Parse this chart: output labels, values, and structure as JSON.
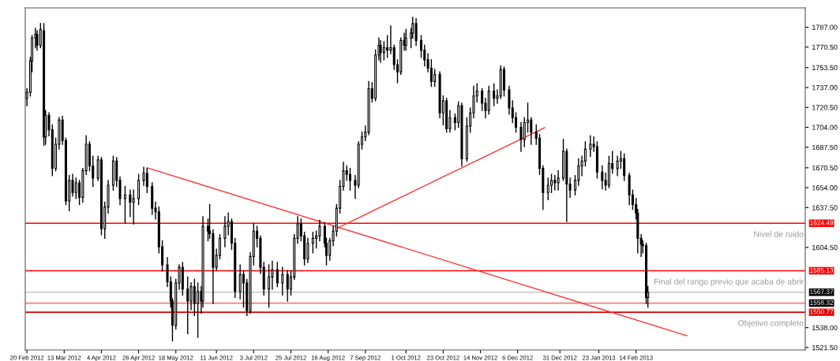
{
  "chart_data": {
    "type": "candlestick",
    "x": [
      "2012-02-20",
      "2012-02-22",
      "2012-02-23",
      "2012-02-25",
      "2012-02-26",
      "2012-02-28",
      "2012-03-01",
      "2012-03-02",
      "2012-03-04",
      "2012-03-06",
      "2012-03-08",
      "2012-03-10",
      "2012-03-12",
      "2012-03-14",
      "2012-03-16",
      "2012-03-18",
      "2012-03-20",
      "2012-03-22",
      "2012-03-24",
      "2012-03-26",
      "2012-03-28",
      "2012-03-30",
      "2012-04-02",
      "2012-04-04",
      "2012-04-06",
      "2012-04-08",
      "2012-04-11",
      "2012-04-13",
      "2012-04-15",
      "2012-04-18",
      "2012-04-21",
      "2012-04-23",
      "2012-04-26",
      "2012-04-29",
      "2012-05-01",
      "2012-05-04",
      "2012-05-06",
      "2012-05-08",
      "2012-05-10",
      "2012-05-13",
      "2012-05-15",
      "2012-05-16",
      "2012-05-18",
      "2012-05-20",
      "2012-05-22",
      "2012-05-25",
      "2012-05-27",
      "2012-05-29",
      "2012-05-31",
      "2012-06-02",
      "2012-06-03",
      "2012-06-06",
      "2012-06-07",
      "2012-06-09",
      "2012-06-11",
      "2012-06-13",
      "2012-06-16",
      "2012-06-18",
      "2012-06-20",
      "2012-06-22",
      "2012-06-25",
      "2012-06-27",
      "2012-06-29",
      "2012-07-01",
      "2012-07-03",
      "2012-07-05",
      "2012-07-07",
      "2012-07-09",
      "2012-07-12",
      "2012-07-14",
      "2012-07-17",
      "2012-07-20",
      "2012-07-23",
      "2012-07-25",
      "2012-07-27",
      "2012-07-29",
      "2012-07-31",
      "2012-08-02",
      "2012-08-04",
      "2012-08-07",
      "2012-08-09",
      "2012-08-11",
      "2012-08-14",
      "2012-08-15",
      "2012-08-17",
      "2012-08-19",
      "2012-08-21",
      "2012-08-23",
      "2012-08-25",
      "2012-08-27",
      "2012-08-29",
      "2012-09-01",
      "2012-09-03",
      "2012-09-05",
      "2012-09-07",
      "2012-09-09",
      "2012-09-11",
      "2012-09-13",
      "2012-09-15",
      "2012-09-16",
      "2012-09-18",
      "2012-09-20",
      "2012-09-22",
      "2012-09-24",
      "2012-09-26",
      "2012-09-28",
      "2012-09-30",
      "2012-10-01",
      "2012-10-04",
      "2012-10-05",
      "2012-10-07",
      "2012-10-10",
      "2012-10-12",
      "2012-10-14",
      "2012-10-16",
      "2012-10-18",
      "2012-10-21",
      "2012-10-23",
      "2012-10-25",
      "2012-10-27",
      "2012-10-30",
      "2012-11-01",
      "2012-11-03",
      "2012-11-06",
      "2012-11-08",
      "2012-11-10",
      "2012-11-12",
      "2012-11-15",
      "2012-11-17",
      "2012-11-19",
      "2012-11-22",
      "2012-11-24",
      "2012-11-26",
      "2012-11-28",
      "2012-12-01",
      "2012-12-03",
      "2012-12-05",
      "2012-12-08",
      "2012-12-10",
      "2012-12-12",
      "2012-12-14",
      "2012-12-17",
      "2012-12-19",
      "2012-12-21",
      "2012-12-24",
      "2012-12-26",
      "2012-12-28",
      "2012-12-30",
      "2013-01-02",
      "2013-01-04",
      "2013-01-06",
      "2013-01-09",
      "2013-01-11",
      "2013-01-13",
      "2013-01-15",
      "2013-01-18",
      "2013-01-20",
      "2013-01-22",
      "2013-01-25",
      "2013-01-27",
      "2013-01-29",
      "2013-01-31",
      "2013-02-03",
      "2013-02-05",
      "2013-02-07",
      "2013-02-10",
      "2013-02-12",
      "2013-02-14",
      "2013-02-15",
      "2013-02-17",
      "2013-02-18",
      "2013-02-20",
      "2013-02-21"
    ],
    "ohlc": [
      [
        1728,
        1736,
        1722,
        1733
      ],
      [
        1733,
        1762,
        1730,
        1759
      ],
      [
        1759,
        1780,
        1750,
        1778
      ],
      [
        1778,
        1786,
        1770,
        1781
      ],
      [
        1781,
        1784,
        1768,
        1772
      ],
      [
        1772,
        1790,
        1770,
        1785
      ],
      [
        1784,
        1790,
        1689,
        1696
      ],
      [
        1696,
        1718,
        1690,
        1714
      ],
      [
        1714,
        1716,
        1697,
        1702
      ],
      [
        1702,
        1706,
        1664,
        1670
      ],
      [
        1670,
        1695,
        1668,
        1690
      ],
      [
        1690,
        1712,
        1686,
        1710
      ],
      [
        1710,
        1713,
        1690,
        1693
      ],
      [
        1693,
        1695,
        1640,
        1643
      ],
      [
        1643,
        1664,
        1635,
        1660
      ],
      [
        1660,
        1665,
        1647,
        1650
      ],
      [
        1650,
        1662,
        1645,
        1658
      ],
      [
        1658,
        1660,
        1640,
        1646
      ],
      [
        1646,
        1670,
        1642,
        1668
      ],
      [
        1668,
        1697,
        1665,
        1690
      ],
      [
        1690,
        1692,
        1668,
        1672
      ],
      [
        1672,
        1680,
        1655,
        1662
      ],
      [
        1662,
        1680,
        1660,
        1677
      ],
      [
        1677,
        1679,
        1615,
        1620
      ],
      [
        1620,
        1642,
        1612,
        1638
      ],
      [
        1638,
        1660,
        1633,
        1656
      ],
      [
        1656,
        1680,
        1652,
        1676
      ],
      [
        1676,
        1679,
        1655,
        1660
      ],
      [
        1660,
        1663,
        1640,
        1645
      ],
      [
        1645,
        1655,
        1625,
        1648
      ],
      [
        1648,
        1652,
        1630,
        1642
      ],
      [
        1642,
        1652,
        1624,
        1645
      ],
      [
        1645,
        1665,
        1640,
        1660
      ],
      [
        1660,
        1671,
        1656,
        1666
      ],
      [
        1666,
        1670,
        1650,
        1655
      ],
      [
        1655,
        1658,
        1632,
        1637
      ],
      [
        1637,
        1642,
        1628,
        1634
      ],
      [
        1634,
        1638,
        1600,
        1605
      ],
      [
        1605,
        1610,
        1585,
        1590
      ],
      [
        1590,
        1596,
        1572,
        1576
      ],
      [
        1576,
        1580,
        1555,
        1560
      ],
      [
        1560,
        1562,
        1527,
        1540
      ],
      [
        1540,
        1578,
        1537,
        1575
      ],
      [
        1575,
        1590,
        1570,
        1588
      ],
      [
        1588,
        1592,
        1565,
        1570
      ],
      [
        1570,
        1580,
        1533,
        1560
      ],
      [
        1560,
        1575,
        1553,
        1572
      ],
      [
        1572,
        1578,
        1548,
        1558
      ],
      [
        1558,
        1575,
        1530,
        1568
      ],
      [
        1568,
        1572,
        1550,
        1560
      ],
      [
        1560,
        1630,
        1555,
        1622
      ],
      [
        1622,
        1628,
        1610,
        1618
      ],
      [
        1618,
        1640,
        1612,
        1616
      ],
      [
        1616,
        1619,
        1558,
        1588
      ],
      [
        1588,
        1603,
        1586,
        1598
      ],
      [
        1598,
        1615,
        1595,
        1612
      ],
      [
        1612,
        1630,
        1605,
        1622
      ],
      [
        1622,
        1633,
        1615,
        1626
      ],
      [
        1626,
        1628,
        1603,
        1608
      ],
      [
        1608,
        1612,
        1563,
        1568
      ],
      [
        1568,
        1590,
        1562,
        1582
      ],
      [
        1582,
        1585,
        1555,
        1575
      ],
      [
        1575,
        1578,
        1548,
        1552
      ],
      [
        1552,
        1600,
        1550,
        1597
      ],
      [
        1597,
        1624,
        1590,
        1618
      ],
      [
        1618,
        1622,
        1605,
        1612
      ],
      [
        1612,
        1614,
        1583,
        1588
      ],
      [
        1588,
        1592,
        1565,
        1570
      ],
      [
        1570,
        1590,
        1555,
        1580
      ],
      [
        1580,
        1593,
        1570,
        1586
      ],
      [
        1586,
        1592,
        1572,
        1575
      ],
      [
        1575,
        1588,
        1565,
        1582
      ],
      [
        1582,
        1585,
        1560,
        1570
      ],
      [
        1570,
        1585,
        1565,
        1580
      ],
      [
        1580,
        1615,
        1578,
        1612
      ],
      [
        1612,
        1630,
        1608,
        1624
      ],
      [
        1624,
        1628,
        1610,
        1614
      ],
      [
        1614,
        1617,
        1590,
        1595
      ],
      [
        1595,
        1612,
        1592,
        1608
      ],
      [
        1608,
        1617,
        1600,
        1612
      ],
      [
        1612,
        1618,
        1604,
        1614
      ],
      [
        1614,
        1627,
        1610,
        1622
      ],
      [
        1622,
        1625,
        1605,
        1608
      ],
      [
        1608,
        1612,
        1590,
        1598
      ],
      [
        1598,
        1612,
        1594,
        1610
      ],
      [
        1610,
        1622,
        1606,
        1618
      ],
      [
        1618,
        1640,
        1614,
        1637
      ],
      [
        1637,
        1660,
        1633,
        1655
      ],
      [
        1655,
        1675,
        1652,
        1668
      ],
      [
        1668,
        1672,
        1660,
        1665
      ],
      [
        1665,
        1670,
        1652,
        1660
      ],
      [
        1660,
        1664,
        1645,
        1656
      ],
      [
        1656,
        1692,
        1654,
        1690
      ],
      [
        1690,
        1700,
        1686,
        1696
      ],
      [
        1696,
        1705,
        1693,
        1700
      ],
      [
        1700,
        1742,
        1698,
        1736
      ],
      [
        1736,
        1741,
        1725,
        1728
      ],
      [
        1728,
        1768,
        1726,
        1764
      ],
      [
        1764,
        1778,
        1760,
        1772
      ],
      [
        1772,
        1776,
        1758,
        1766
      ],
      [
        1766,
        1775,
        1760,
        1770
      ],
      [
        1770,
        1780,
        1762,
        1768
      ],
      [
        1768,
        1788,
        1765,
        1770
      ],
      [
        1770,
        1772,
        1752,
        1756
      ],
      [
        1756,
        1760,
        1741,
        1750
      ],
      [
        1750,
        1778,
        1748,
        1776
      ],
      [
        1776,
        1782,
        1768,
        1772
      ],
      [
        1772,
        1785,
        1768,
        1778
      ],
      [
        1778,
        1786,
        1770,
        1782
      ],
      [
        1782,
        1795,
        1778,
        1790
      ],
      [
        1790,
        1794,
        1772,
        1776
      ],
      [
        1776,
        1780,
        1762,
        1768
      ],
      [
        1768,
        1772,
        1755,
        1760
      ],
      [
        1760,
        1765,
        1750,
        1753
      ],
      [
        1753,
        1760,
        1738,
        1742
      ],
      [
        1742,
        1752,
        1738,
        1748
      ],
      [
        1748,
        1750,
        1712,
        1716
      ],
      [
        1716,
        1730,
        1706,
        1726
      ],
      [
        1726,
        1728,
        1700,
        1703
      ],
      [
        1703,
        1718,
        1700,
        1712
      ],
      [
        1712,
        1715,
        1702,
        1708
      ],
      [
        1708,
        1725,
        1704,
        1722
      ],
      [
        1722,
        1724,
        1672,
        1678
      ],
      [
        1678,
        1712,
        1676,
        1705
      ],
      [
        1705,
        1720,
        1700,
        1716
      ],
      [
        1716,
        1738,
        1712,
        1730
      ],
      [
        1730,
        1740,
        1725,
        1734
      ],
      [
        1734,
        1736,
        1718,
        1724
      ],
      [
        1724,
        1728,
        1712,
        1718
      ],
      [
        1718,
        1738,
        1715,
        1734
      ],
      [
        1734,
        1740,
        1722,
        1728
      ],
      [
        1728,
        1735,
        1724,
        1730
      ],
      [
        1730,
        1755,
        1728,
        1752
      ],
      [
        1752,
        1754,
        1730,
        1735
      ],
      [
        1735,
        1738,
        1715,
        1720
      ],
      [
        1720,
        1726,
        1708,
        1712
      ],
      [
        1712,
        1716,
        1700,
        1704
      ],
      [
        1704,
        1708,
        1684,
        1694
      ],
      [
        1694,
        1712,
        1688,
        1708
      ],
      [
        1708,
        1724,
        1700,
        1710
      ],
      [
        1710,
        1712,
        1690,
        1700
      ],
      [
        1700,
        1706,
        1690,
        1695
      ],
      [
        1695,
        1698,
        1665,
        1670
      ],
      [
        1670,
        1672,
        1636,
        1650
      ],
      [
        1650,
        1662,
        1644,
        1656
      ],
      [
        1656,
        1665,
        1650,
        1660
      ],
      [
        1660,
        1664,
        1652,
        1658
      ],
      [
        1658,
        1668,
        1652,
        1662
      ],
      [
        1662,
        1694,
        1660,
        1684
      ],
      [
        1684,
        1686,
        1626,
        1657
      ],
      [
        1657,
        1662,
        1646,
        1652
      ],
      [
        1652,
        1664,
        1648,
        1660
      ],
      [
        1660,
        1678,
        1656,
        1672
      ],
      [
        1672,
        1680,
        1664,
        1676
      ],
      [
        1676,
        1692,
        1672,
        1686
      ],
      [
        1686,
        1697,
        1680,
        1690
      ],
      [
        1690,
        1696,
        1684,
        1688
      ],
      [
        1688,
        1692,
        1662,
        1667
      ],
      [
        1667,
        1672,
        1653,
        1660
      ],
      [
        1660,
        1666,
        1652,
        1656
      ],
      [
        1656,
        1680,
        1654,
        1674
      ],
      [
        1674,
        1684,
        1666,
        1670
      ],
      [
        1670,
        1680,
        1664,
        1676
      ],
      [
        1676,
        1684,
        1670,
        1678
      ],
      [
        1678,
        1682,
        1660,
        1664
      ],
      [
        1664,
        1666,
        1640,
        1648
      ],
      [
        1648,
        1652,
        1636,
        1640
      ],
      [
        1640,
        1645,
        1628,
        1633
      ],
      [
        1633,
        1636,
        1600,
        1612
      ],
      [
        1612,
        1615,
        1597,
        1607
      ],
      [
        1607,
        1610,
        1600,
        1606
      ],
      [
        1606,
        1608,
        1558,
        1563
      ],
      [
        1563,
        1572,
        1555,
        1567.37
      ]
    ],
    "series": [
      {
        "type": "line",
        "color": "#ff3030",
        "x": [
          "2012-05-01",
          "2013-03-16"
        ],
        "values": [
          1670.5,
          1531.3
        ]
      },
      {
        "type": "line",
        "color": "#ff3030",
        "x": [
          "2012-08-21",
          "2012-12-22"
        ],
        "values": [
          1620.2,
          1703.7
        ]
      }
    ],
    "ref_lines": [
      {
        "axis": "y",
        "value": 1624.49,
        "label": "1624.49",
        "color": "#ff0000"
      },
      {
        "axis": "y",
        "value": 1585.13,
        "label": "1585.13",
        "color": "#ff0000"
      },
      {
        "axis": "y",
        "value": 1567.37,
        "label": "1567.37",
        "color": "#c8c8c8"
      },
      {
        "axis": "y",
        "value": 1558.32,
        "label": "1558.32",
        "color": "#f08080"
      },
      {
        "axis": "y",
        "value": 1550.77,
        "label": "1550.77",
        "color": "#e00000"
      }
    ],
    "annotations": [
      {
        "text": "Nivel de ruido",
        "y": 1624.49
      },
      {
        "text": "Final del rango previo que acaba de abrir",
        "y": 1585.13
      },
      {
        "text": "Objetivo completo",
        "y": 1550.77
      }
    ],
    "xlim": [
      "2012-02-19",
      "2013-05-25"
    ],
    "xticks": [
      {
        "value": "2012-02-20",
        "label": "20 Feb 2012"
      },
      {
        "value": "2012-03-13",
        "label": "13 Mar 2012"
      },
      {
        "value": "2012-04-04",
        "label": "4 Apr 2012"
      },
      {
        "value": "2012-04-26",
        "label": "26 Apr 2012"
      },
      {
        "value": "2012-05-18",
        "label": "18 May 2012"
      },
      {
        "value": "2012-06-11",
        "label": "11 Jun 2012"
      },
      {
        "value": "2012-07-03",
        "label": "3 Jul 2012"
      },
      {
        "value": "2012-07-25",
        "label": "25 Jul 2012"
      },
      {
        "value": "2012-08-16",
        "label": "16 Aug 2012"
      },
      {
        "value": "2012-09-07",
        "label": "7 Sep 2012"
      },
      {
        "value": "2012-10-01",
        "label": "1 Oct 2012"
      },
      {
        "value": "2012-10-23",
        "label": "23 Oct 2012"
      },
      {
        "value": "2012-11-14",
        "label": "14 Nov 2012"
      },
      {
        "value": "2012-12-06",
        "label": "6 Dec 2012"
      },
      {
        "value": "2012-12-31",
        "label": "31 Dec 2012"
      },
      {
        "value": "2013-01-23",
        "label": "23 Jan 2013"
      },
      {
        "value": "2013-02-14",
        "label": "14 Feb 2013"
      }
    ],
    "ylim": [
      1519.5,
      1803
    ],
    "yticks": [
      {
        "value": 1787,
        "label": "1787.00"
      },
      {
        "value": 1770.5,
        "label": "1770.50"
      },
      {
        "value": 1753.5,
        "label": "1753.50"
      },
      {
        "value": 1737,
        "label": "1737.00"
      },
      {
        "value": 1720.5,
        "label": "1720.50"
      },
      {
        "value": 1704,
        "label": "1704.00"
      },
      {
        "value": 1687.5,
        "label": "1687.50"
      },
      {
        "value": 1670.5,
        "label": "1670.50"
      },
      {
        "value": 1654,
        "label": "1654.00"
      },
      {
        "value": 1637.5,
        "label": "1637.50"
      },
      {
        "value": 1604.5,
        "label": "1604.50"
      },
      {
        "value": 1538,
        "label": "1538.00"
      },
      {
        "value": 1521.5,
        "label": "1521.50"
      }
    ],
    "grid": false,
    "legend": false
  }
}
